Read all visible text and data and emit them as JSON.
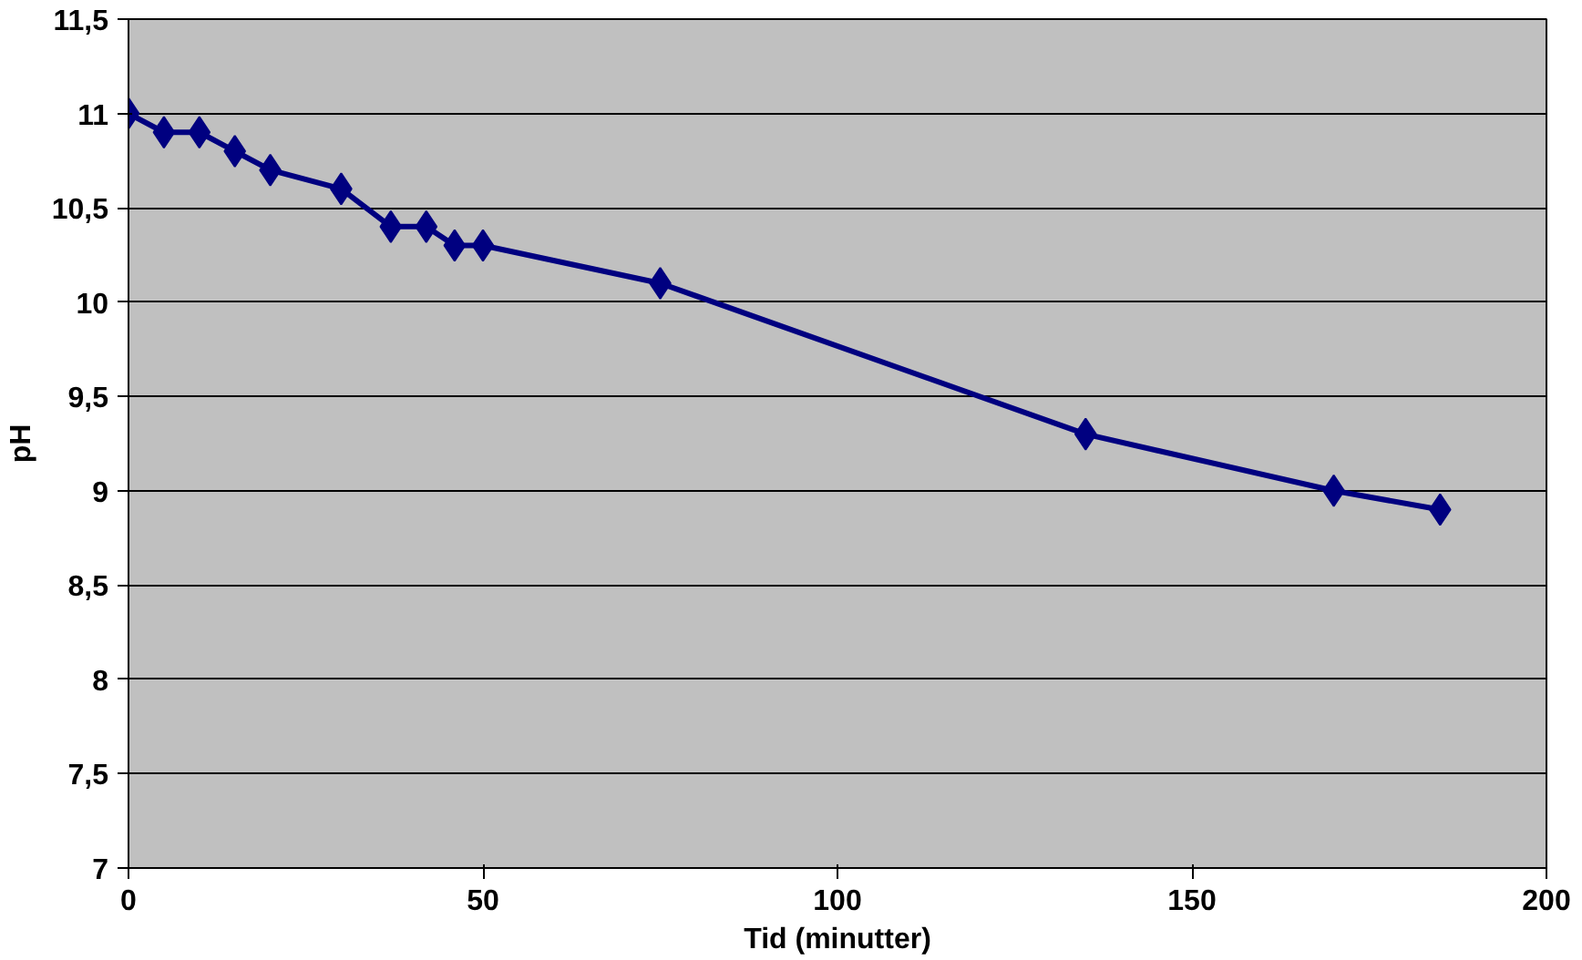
{
  "chart_data": {
    "type": "line",
    "xlabel": "Tid (minutter)",
    "ylabel": "pH",
    "x": [
      0,
      5,
      10,
      15,
      20,
      30,
      37,
      42,
      46,
      50,
      75,
      135,
      170,
      185
    ],
    "series": [
      {
        "color": "#000080",
        "values": [
          11,
          10.9,
          10.9,
          10.8,
          10.7,
          10.6,
          10.4,
          10.4,
          10.3,
          10.3,
          10.1,
          9.3,
          9.0,
          8.9
        ]
      }
    ],
    "xlim": [
      0,
      200
    ],
    "xticks": [
      0,
      50,
      100,
      150,
      200
    ],
    "ylim": [
      7,
      11.5
    ],
    "yticks": [
      7,
      {
        "value": 7.5,
        "label": "7,5"
      },
      8,
      {
        "value": 8.5,
        "label": "8,5"
      },
      9,
      {
        "value": 9.5,
        "label": "9,5"
      },
      10,
      {
        "value": 10.5,
        "label": "10,5"
      },
      11,
      {
        "value": 11.5,
        "label": "11,5"
      }
    ],
    "grid": "y",
    "marker": "diamond",
    "line_style": "solid"
  }
}
